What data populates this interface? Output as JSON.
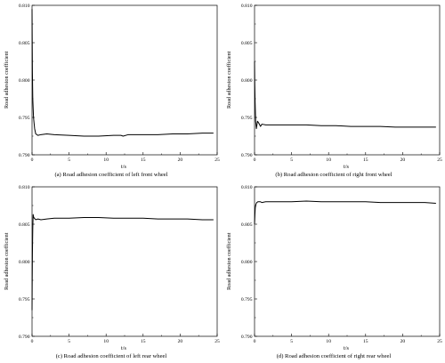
{
  "chart_data": [
    {
      "type": "line",
      "caption": "(a) Road adhesion coefficient of left front wheel",
      "xlabel": "t/s",
      "ylabel": "Road adhesion coefficient",
      "xlim": [
        0,
        25
      ],
      "ylim": [
        0.79,
        0.81
      ],
      "xticks": [
        "0",
        "5",
        "10",
        "15",
        "20",
        "25"
      ],
      "yticks": [
        "0.790",
        "0.795",
        "0.800",
        "0.805",
        "0.810"
      ],
      "grid": false,
      "series": [
        {
          "x": [
            0,
            0.02,
            0.05,
            0.1,
            0.2,
            0.35,
            0.5,
            0.8,
            1.2,
            2,
            3,
            5,
            7,
            9,
            11,
            12,
            12.3,
            13,
            15,
            17,
            19,
            21,
            23,
            24.5
          ],
          "y": [
            0.8095,
            0.806,
            0.801,
            0.7975,
            0.795,
            0.7935,
            0.7928,
            0.7926,
            0.7927,
            0.7928,
            0.7927,
            0.7926,
            0.7925,
            0.7925,
            0.7926,
            0.7926,
            0.7925,
            0.7927,
            0.7927,
            0.7927,
            0.7928,
            0.7928,
            0.7929,
            0.7929
          ]
        }
      ]
    },
    {
      "type": "line",
      "caption": "(b) Road adhesion coefficient of right front wheel",
      "xlabel": "t/s",
      "ylabel": "Road adhesion coefficient",
      "xlim": [
        0,
        25
      ],
      "ylim": [
        0.79,
        0.81
      ],
      "xticks": [
        "0",
        "5",
        "10",
        "15",
        "20",
        "25"
      ],
      "yticks": [
        "0.790",
        "0.795",
        "0.800",
        "0.805",
        "0.810"
      ],
      "grid": false,
      "series": [
        {
          "x": [
            0,
            0.03,
            0.08,
            0.15,
            0.25,
            0.4,
            0.6,
            0.8,
            1,
            1.5,
            2,
            3,
            5,
            7,
            9,
            11,
            13,
            15,
            17,
            19,
            21,
            23,
            24.5
          ],
          "y": [
            0.8025,
            0.7995,
            0.797,
            0.7945,
            0.7935,
            0.7945,
            0.7942,
            0.7938,
            0.7941,
            0.794,
            0.794,
            0.794,
            0.794,
            0.794,
            0.7939,
            0.7939,
            0.7938,
            0.7938,
            0.7938,
            0.7937,
            0.7937,
            0.7937,
            0.7937
          ]
        }
      ]
    },
    {
      "type": "line",
      "caption": "(c) Road adhesion coefficient of left rear wheel",
      "xlabel": "t/s",
      "ylabel": "Road adhesion coefficient",
      "xlim": [
        0,
        25
      ],
      "ylim": [
        0.79,
        0.81
      ],
      "xticks": [
        "0",
        "5",
        "10",
        "15",
        "20",
        "25"
      ],
      "yticks": [
        "0.790",
        "0.795",
        "0.800",
        "0.805",
        "0.810"
      ],
      "grid": false,
      "series": [
        {
          "x": [
            0,
            0.02,
            0.05,
            0.1,
            0.15,
            0.2,
            0.3,
            0.5,
            0.8,
            1.2,
            2,
            3,
            5,
            7,
            8,
            9,
            11,
            13,
            15,
            17,
            19,
            21,
            23,
            24.5
          ],
          "y": [
            0.7935,
            0.797,
            0.801,
            0.8045,
            0.8063,
            0.806,
            0.8058,
            0.8056,
            0.8057,
            0.8056,
            0.8057,
            0.8058,
            0.8058,
            0.8059,
            0.8059,
            0.8059,
            0.8058,
            0.8058,
            0.8058,
            0.8057,
            0.8057,
            0.8057,
            0.8056,
            0.8056
          ]
        }
      ]
    },
    {
      "type": "line",
      "caption": "(d) Road adhesion coefficient of right rear wheel",
      "xlabel": "t/s",
      "ylabel": "Road adhesion coefficient",
      "xlim": [
        0,
        25
      ],
      "ylim": [
        0.79,
        0.81
      ],
      "xticks": [
        "0",
        "5",
        "10",
        "15",
        "20",
        "25"
      ],
      "yticks": [
        "0.790",
        "0.795",
        "0.800",
        "0.805",
        "0.810"
      ],
      "grid": false,
      "series": [
        {
          "x": [
            0,
            0.05,
            0.1,
            0.2,
            0.3,
            0.45,
            0.6,
            0.8,
            1,
            1.5,
            2,
            3,
            5,
            7,
            9,
            11,
            13,
            15,
            17,
            19,
            21,
            23,
            24.5
          ],
          "y": [
            0.805,
            0.8063,
            0.8072,
            0.8077,
            0.8079,
            0.808,
            0.808,
            0.808,
            0.8079,
            0.808,
            0.808,
            0.808,
            0.808,
            0.8081,
            0.808,
            0.808,
            0.808,
            0.808,
            0.8079,
            0.8079,
            0.8079,
            0.8079,
            0.8078
          ]
        }
      ]
    }
  ]
}
